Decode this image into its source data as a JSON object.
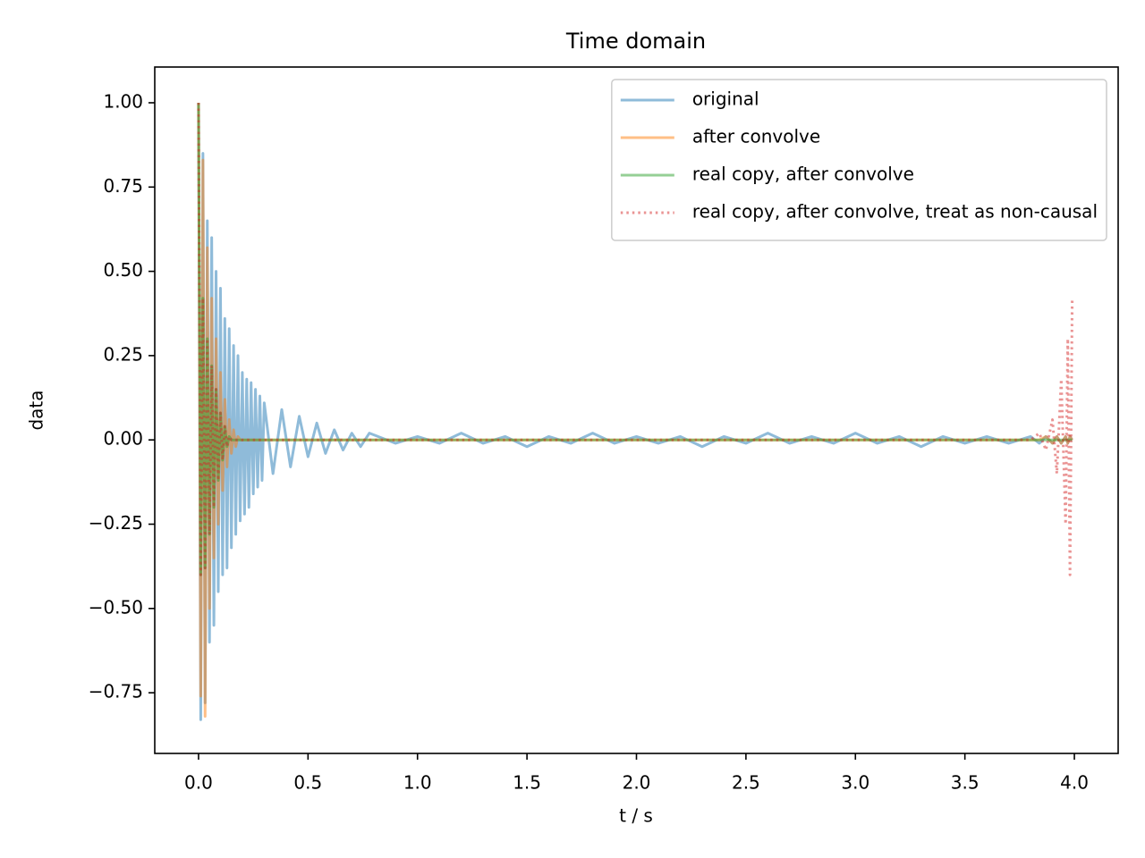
{
  "chart_data": {
    "type": "line",
    "title": "Time domain",
    "xlabel": "t / s",
    "ylabel": "data",
    "x": [
      0,
      0.01,
      0.02,
      0.03,
      0.04,
      0.05,
      0.06,
      0.07,
      0.08,
      0.09,
      0.1,
      0.11,
      0.12,
      0.13,
      0.14,
      0.15,
      0.16,
      0.17,
      0.18,
      0.19,
      0.2,
      0.21,
      0.22,
      0.23,
      0.24,
      0.25,
      0.26,
      0.27,
      0.28,
      0.29,
      0.3,
      0.34,
      0.38,
      0.42,
      0.46,
      0.5,
      0.54,
      0.58,
      0.62,
      0.66,
      0.7,
      0.74,
      0.78,
      0.9,
      1.0,
      1.1,
      1.2,
      1.3,
      1.4,
      1.5,
      1.6,
      1.7,
      1.8,
      1.9,
      2.0,
      2.1,
      2.2,
      2.3,
      2.4,
      2.5,
      2.6,
      2.7,
      2.8,
      2.9,
      3.0,
      3.1,
      3.2,
      3.3,
      3.4,
      3.5,
      3.6,
      3.7,
      3.8,
      3.84,
      3.87,
      3.9,
      3.92,
      3.94,
      3.96,
      3.97,
      3.98,
      3.99
    ],
    "series": [
      {
        "name": "original",
        "color": "#1f77b4",
        "alpha": 0.5,
        "linestyle": "solid",
        "values": [
          1.0,
          -0.83,
          0.85,
          -0.78,
          0.65,
          -0.6,
          0.6,
          -0.55,
          0.5,
          -0.45,
          0.45,
          -0.4,
          0.36,
          -0.38,
          0.33,
          -0.32,
          0.28,
          -0.28,
          0.25,
          -0.24,
          0.2,
          -0.22,
          0.18,
          -0.2,
          0.17,
          -0.16,
          0.15,
          -0.14,
          0.13,
          -0.12,
          0.11,
          -0.1,
          0.09,
          -0.08,
          0.07,
          -0.05,
          0.05,
          -0.04,
          0.03,
          -0.03,
          0.02,
          -0.02,
          0.02,
          -0.01,
          0.01,
          -0.01,
          0.02,
          -0.01,
          0.01,
          -0.02,
          0.01,
          -0.01,
          0.02,
          -0.01,
          0.01,
          -0.01,
          0.01,
          -0.02,
          0.01,
          -0.01,
          0.02,
          -0.01,
          0.01,
          -0.01,
          0.02,
          -0.01,
          0.01,
          -0.02,
          0.01,
          -0.01,
          0.01,
          -0.01,
          0.01,
          -0.01,
          0.01,
          -0.01,
          0.01,
          -0.01,
          0.01,
          -0.01,
          0.01,
          0
        ]
      },
      {
        "name": "after convolve",
        "color": "#ff7f0e",
        "alpha": 0.5,
        "linestyle": "solid",
        "values": [
          1.0,
          -0.76,
          0.83,
          -0.82,
          0.57,
          -0.5,
          0.42,
          -0.35,
          0.3,
          -0.25,
          0.2,
          -0.15,
          0.12,
          -0.08,
          0.06,
          -0.04,
          0.03,
          -0.02,
          0.01,
          0,
          0,
          0,
          0,
          0,
          0,
          0,
          0,
          0,
          0,
          0,
          0,
          0,
          0,
          0,
          0,
          0,
          0,
          0,
          0,
          0,
          0,
          0,
          0,
          0,
          0,
          0,
          0,
          0,
          0,
          0,
          0,
          0,
          0,
          0,
          0,
          0,
          0,
          0,
          0,
          0,
          0,
          0,
          0,
          0,
          0,
          0,
          0,
          0,
          0,
          0,
          0,
          0,
          0,
          0,
          0.01,
          -0.01,
          0.01,
          -0.01,
          0.01,
          -0.01,
          0.01,
          0
        ]
      },
      {
        "name": "real copy, after convolve",
        "color": "#2ca02c",
        "alpha": 0.5,
        "linestyle": "solid",
        "values": [
          1.0,
          -0.4,
          0.42,
          -0.38,
          0.3,
          -0.28,
          0.22,
          -0.2,
          0.15,
          -0.12,
          0.08,
          -0.06,
          0.04,
          -0.02,
          0.01,
          0,
          0,
          0,
          0,
          0,
          0,
          0,
          0,
          0,
          0,
          0,
          0,
          0,
          0,
          0,
          0,
          0,
          0,
          0,
          0,
          0,
          0,
          0,
          0,
          0,
          0,
          0,
          0,
          0,
          0,
          0,
          0,
          0,
          0,
          0,
          0,
          0,
          0,
          0,
          0,
          0,
          0,
          0,
          0,
          0,
          0,
          0,
          0,
          0,
          0,
          0,
          0,
          0,
          0,
          0,
          0,
          0,
          0,
          0,
          0,
          0,
          0,
          0,
          0,
          0,
          0,
          0
        ]
      },
      {
        "name": "real copy, after convolve, treat as non-causal",
        "color": "#d62728",
        "alpha": 0.5,
        "linestyle": "dotted",
        "values": [
          1.0,
          -0.4,
          0.42,
          -0.38,
          0.3,
          -0.28,
          0.22,
          -0.2,
          0.15,
          -0.12,
          0.08,
          -0.06,
          0.04,
          -0.02,
          0.01,
          0,
          0,
          0,
          0,
          0,
          0,
          0,
          0,
          0,
          0,
          0,
          0,
          0,
          0,
          0,
          0,
          0,
          0,
          0,
          0,
          0,
          0,
          0,
          0,
          0,
          0,
          0,
          0,
          0,
          0,
          0,
          0,
          0,
          0,
          0,
          0,
          0,
          0,
          0,
          0,
          0,
          0,
          0,
          0,
          0,
          0,
          0,
          0,
          0,
          0,
          0,
          0,
          0,
          0,
          0,
          0,
          0,
          0,
          0.02,
          -0.03,
          0.06,
          -0.1,
          0.18,
          -0.25,
          0.3,
          -0.4,
          0.42
        ]
      }
    ],
    "xlim": [
      -0.2,
      4.2
    ],
    "xticks": [
      {
        "value": 0,
        "label": "0.0"
      },
      0.5,
      {
        "value": 1,
        "label": "1.0"
      },
      1.5,
      {
        "value": 2,
        "label": "2.0"
      },
      2.5,
      {
        "value": 3,
        "label": "3.0"
      },
      3.5,
      {
        "value": 4,
        "label": "4.0"
      }
    ],
    "ylim": [
      -0.93,
      1.106
    ],
    "yticks": [
      {
        "value": -0.75,
        "label": "−0.75"
      },
      {
        "value": -0.5,
        "label": "−0.50"
      },
      {
        "value": -0.25,
        "label": "−0.25"
      },
      {
        "value": 0,
        "label": "0.00"
      },
      0.25,
      {
        "value": 0.5,
        "label": "0.50"
      },
      0.75,
      {
        "value": 1,
        "label": "1.00"
      }
    ],
    "grid": false,
    "legend": "upper right"
  }
}
